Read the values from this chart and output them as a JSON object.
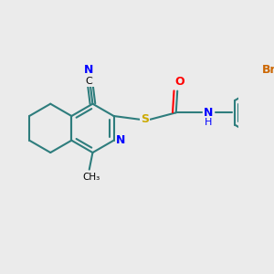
{
  "bg_color": "#ebebeb",
  "bond_color": "#2e7d7d",
  "bond_width": 1.5,
  "atom_colors": {
    "N": "#0000ff",
    "O": "#ff0000",
    "S": "#ccaa00",
    "Br": "#cc6600",
    "C": "#000000"
  },
  "fig_width": 3.0,
  "fig_height": 3.0,
  "dpi": 100
}
